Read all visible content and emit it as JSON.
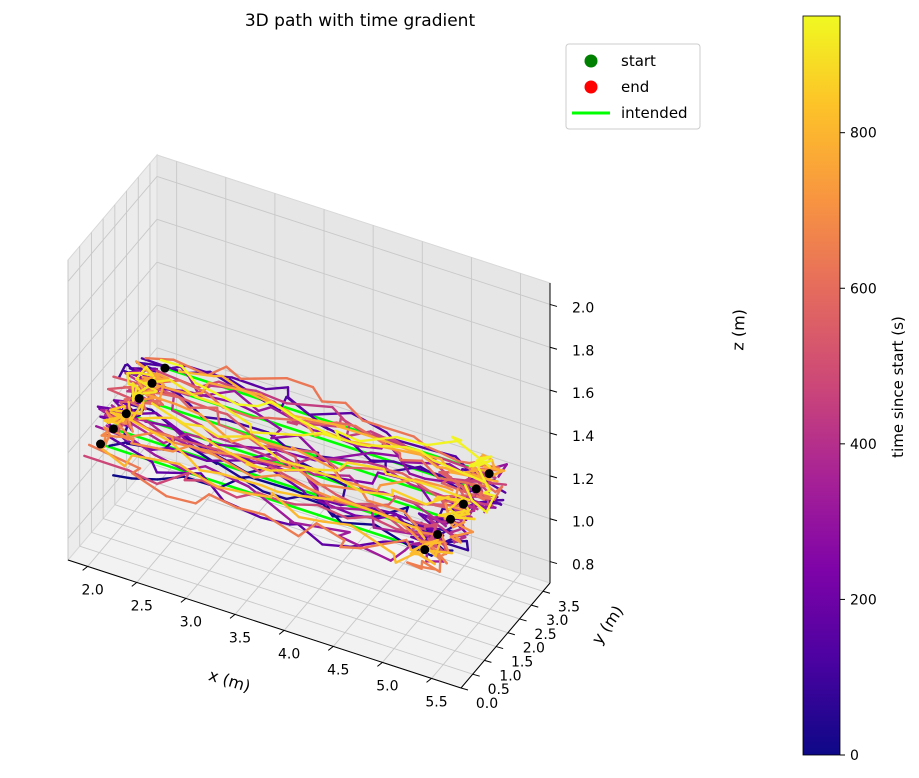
{
  "chart_data": {
    "type": "line",
    "projection": "3d",
    "title": "3D path with time gradient",
    "xlabel": "x (m)",
    "ylabel": "y (m)",
    "zlabel": "z (m)",
    "xlim": [
      1.8,
      5.8
    ],
    "ylim": [
      0.0,
      3.8
    ],
    "zlim": [
      0.7,
      2.1
    ],
    "x_ticks": [
      "2.0",
      "2.5",
      "3.0",
      "3.5",
      "4.0",
      "4.5",
      "5.0",
      "5.5"
    ],
    "y_ticks": [
      "0.0",
      "0.5",
      "1.0",
      "1.5",
      "2.0",
      "2.5",
      "3.0",
      "3.5"
    ],
    "z_ticks": [
      "0.8",
      "1.0",
      "1.2",
      "1.4",
      "1.6",
      "1.8",
      "2.0"
    ],
    "grid": true,
    "legend": {
      "position": "top-right",
      "entries": [
        {
          "label": "start",
          "marker": "dot",
          "color": "#008000"
        },
        {
          "label": "end",
          "marker": "dot",
          "color": "#ff0000"
        },
        {
          "label": "intended",
          "marker": "line",
          "color": "#00ff00"
        }
      ]
    },
    "colorbar": {
      "label": "time since start (s)",
      "colormap": "plasma",
      "range": [
        0,
        950
      ],
      "ticks": [
        "0",
        "200",
        "400",
        "600",
        "800"
      ]
    },
    "intended_path": {
      "z": 1.2,
      "x_range": [
        2.0,
        5.3
      ],
      "y_lanes": [
        0.55,
        1.1,
        1.65,
        2.2,
        2.75,
        3.3
      ]
    },
    "waypoints": [
      {
        "x": 2.0,
        "y": 0.55,
        "z": 1.2
      },
      {
        "x": 2.0,
        "y": 1.1,
        "z": 1.2
      },
      {
        "x": 2.0,
        "y": 1.65,
        "z": 1.2
      },
      {
        "x": 2.0,
        "y": 2.2,
        "z": 1.2
      },
      {
        "x": 2.0,
        "y": 2.75,
        "z": 1.2
      },
      {
        "x": 2.0,
        "y": 3.3,
        "z": 1.2
      },
      {
        "x": 5.3,
        "y": 0.55,
        "z": 1.2
      },
      {
        "x": 5.3,
        "y": 1.1,
        "z": 1.2
      },
      {
        "x": 5.3,
        "y": 1.65,
        "z": 1.2
      },
      {
        "x": 5.3,
        "y": 2.2,
        "z": 1.2
      },
      {
        "x": 5.3,
        "y": 2.75,
        "z": 1.2
      },
      {
        "x": 5.3,
        "y": 3.3,
        "z": 1.2
      }
    ]
  }
}
